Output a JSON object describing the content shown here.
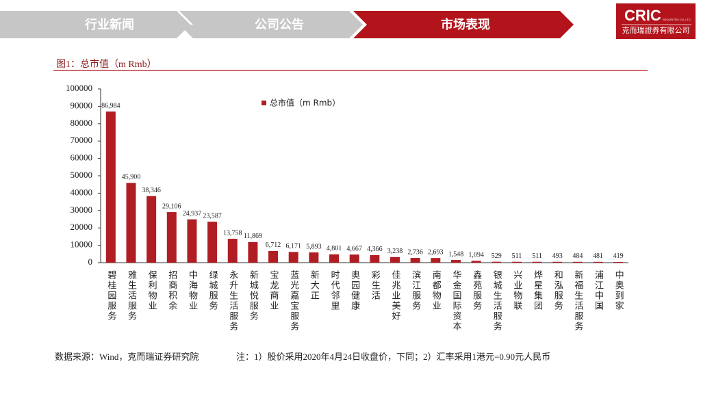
{
  "header": {
    "tabs": [
      "行业新闻",
      "公司公告",
      "市场表现"
    ],
    "logo": {
      "name": "CRIC",
      "tagline": "SECURITIES CO.,LTD",
      "company": "克而瑞證券有限公司"
    }
  },
  "chart_data": {
    "type": "bar",
    "title": "图1：总市值（m Rmb）",
    "categories": [
      "碧桂园服务",
      "雅生活服务",
      "保利物业",
      "招商积余",
      "中海物业",
      "绿城服务",
      "永升生活服务",
      "新城悦服务",
      "宝龙商业",
      "蓝光嘉宝服务",
      "新大正",
      "时代邻里",
      "奥园健康",
      "彩生活",
      "佳兆业美好",
      "滨江服务",
      "南都物业",
      "华金国际资本",
      "鑫苑服务",
      "银城生活服务",
      "兴业物联",
      "烨星集团",
      "和泓服务",
      "新福生活服务",
      "浦江中国",
      "中奥到家"
    ],
    "series": [
      {
        "name": "总市值（m Rmb）",
        "color": "#b01e24",
        "values": [
          86984,
          45900,
          38346,
          29106,
          24937,
          23587,
          13758,
          11869,
          6712,
          6171,
          5893,
          4801,
          4667,
          4366,
          3238,
          2736,
          2693,
          1548,
          1094,
          529,
          511,
          511,
          493,
          484,
          481,
          419
        ],
        "value_labels": [
          "86,984",
          "45,900",
          "38,346",
          "29,106",
          "24,937",
          "23,587",
          "13,758",
          "11,869",
          "6,712",
          "6,171",
          "5,893",
          "4,801",
          "4,667",
          "4,366",
          "3,238",
          "2,736",
          "2,693",
          "1,548",
          "1,094",
          "529",
          "511",
          "511",
          "493",
          "484",
          "481",
          "419"
        ]
      }
    ],
    "ylim": [
      0,
      100000
    ],
    "yticks": [
      0,
      10000,
      20000,
      30000,
      40000,
      50000,
      60000,
      70000,
      80000,
      90000,
      100000
    ],
    "legend": "top"
  },
  "footer": {
    "source": "数据来源：Wind，克而瑞证券研究院",
    "note": "注：1）股价采用2020年4月24日收盘价，下同；2）汇率采用1港元=0.90元人民币"
  }
}
